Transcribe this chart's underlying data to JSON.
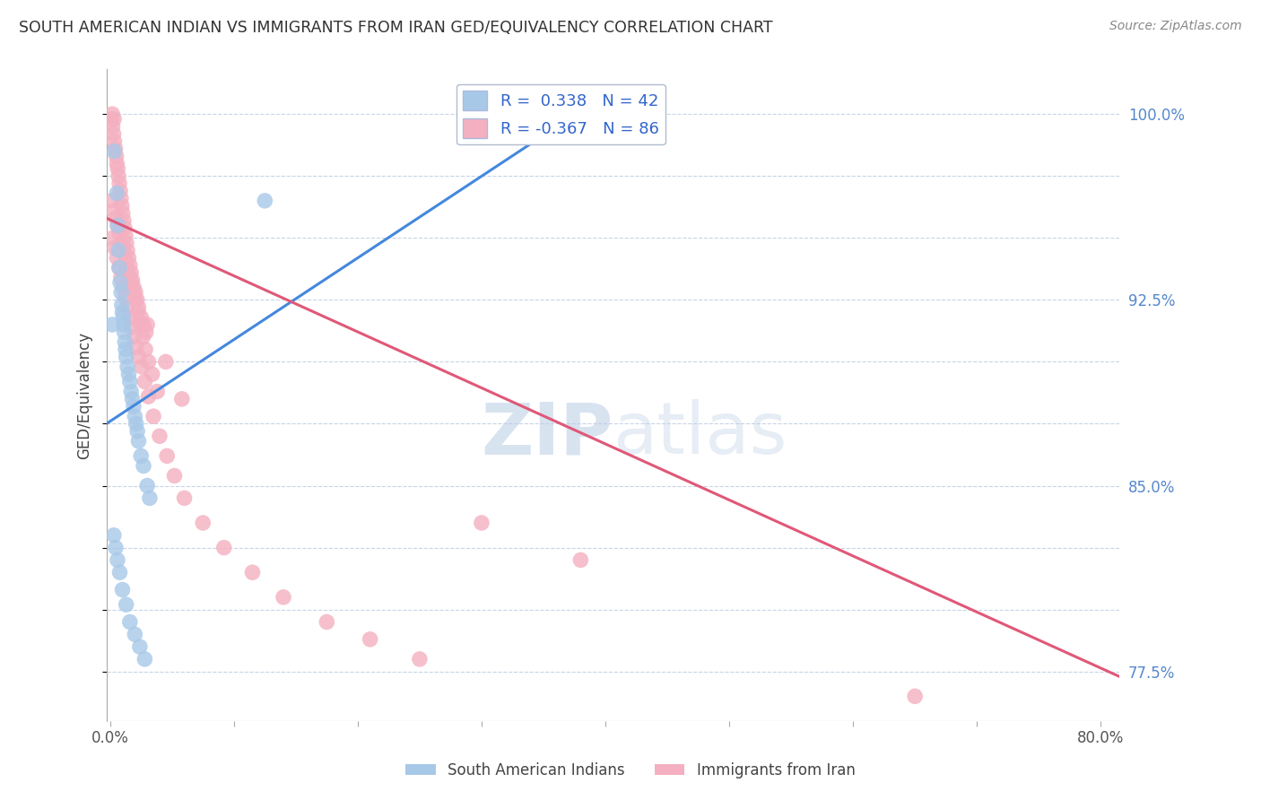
{
  "title": "SOUTH AMERICAN INDIAN VS IMMIGRANTS FROM IRAN GED/EQUIVALENCY CORRELATION CHART",
  "source": "Source: ZipAtlas.com",
  "ylabel": "GED/Equivalency",
  "blue_R": 0.338,
  "blue_N": 42,
  "pink_R": -0.367,
  "pink_N": 86,
  "blue_color": "#a8c8e8",
  "pink_color": "#f4b0c0",
  "blue_line_color": "#4488dd",
  "pink_line_color": "#e05878",
  "legend_text_color": "#3366cc",
  "title_color": "#333333",
  "source_color": "#888888",
  "ylabel_color": "#444444",
  "watermark_color": "#ccddf0",
  "ymin": 75.5,
  "ymax": 101.8,
  "xmin": -0.3,
  "xmax": 81.5,
  "ytick_positions": [
    77.5,
    80.0,
    82.5,
    85.0,
    87.5,
    90.0,
    92.5,
    95.0,
    97.5,
    100.0
  ],
  "ytick_labels": [
    "77.5%",
    "",
    "",
    "85.0%",
    "",
    "",
    "92.5%",
    "",
    "",
    "100.0%"
  ],
  "blue_line_x0": -0.3,
  "blue_line_y0": 87.5,
  "blue_line_x1": 37.0,
  "blue_line_y1": 99.8,
  "pink_line_x0": -0.3,
  "pink_line_y0": 95.8,
  "pink_line_x1": 81.5,
  "pink_line_y1": 77.3,
  "blue_scatter_x": [
    0.18,
    0.35,
    0.55,
    0.62,
    0.68,
    0.75,
    0.82,
    0.9,
    0.95,
    1.0,
    1.05,
    1.1,
    1.15,
    1.2,
    1.25,
    1.3,
    1.4,
    1.5,
    1.6,
    1.7,
    1.8,
    1.9,
    2.0,
    2.1,
    2.2,
    2.3,
    2.5,
    2.7,
    3.0,
    3.2,
    0.3,
    0.45,
    0.6,
    0.78,
    1.0,
    1.3,
    1.6,
    2.0,
    2.4,
    2.8,
    12.5,
    35.5
  ],
  "blue_scatter_y": [
    91.5,
    98.5,
    96.8,
    95.5,
    94.5,
    93.8,
    93.2,
    92.8,
    92.3,
    92.0,
    91.8,
    91.5,
    91.2,
    90.8,
    90.5,
    90.2,
    89.8,
    89.5,
    89.2,
    88.8,
    88.5,
    88.2,
    87.8,
    87.5,
    87.2,
    86.8,
    86.2,
    85.8,
    85.0,
    84.5,
    83.0,
    82.5,
    82.0,
    81.5,
    80.8,
    80.2,
    79.5,
    79.0,
    78.5,
    78.0,
    96.5,
    99.5
  ],
  "pink_scatter_x": [
    0.12,
    0.2,
    0.28,
    0.35,
    0.42,
    0.5,
    0.55,
    0.62,
    0.68,
    0.75,
    0.82,
    0.88,
    0.95,
    1.02,
    1.1,
    1.18,
    1.25,
    1.32,
    1.4,
    1.5,
    1.6,
    1.7,
    1.8,
    1.92,
    2.05,
    2.18,
    2.3,
    2.5,
    2.7,
    2.9,
    0.15,
    0.3,
    0.45,
    0.6,
    0.75,
    0.92,
    1.08,
    1.22,
    1.38,
    1.55,
    1.72,
    1.88,
    2.05,
    2.25,
    2.45,
    2.65,
    2.85,
    3.1,
    3.4,
    3.8,
    0.22,
    0.38,
    0.55,
    0.72,
    0.88,
    1.05,
    1.22,
    1.4,
    1.58,
    1.75,
    1.92,
    2.1,
    2.3,
    2.55,
    2.8,
    3.1,
    3.5,
    4.0,
    4.6,
    5.2,
    6.0,
    7.5,
    9.2,
    11.5,
    14.0,
    17.5,
    21.0,
    25.0,
    30.0,
    38.0,
    3.0,
    4.5,
    5.8,
    65.0,
    0.18,
    0.32
  ],
  "pink_scatter_y": [
    99.8,
    99.5,
    99.2,
    98.9,
    98.6,
    98.3,
    98.0,
    97.8,
    97.5,
    97.2,
    96.9,
    96.6,
    96.3,
    96.0,
    95.7,
    95.4,
    95.1,
    94.8,
    94.5,
    94.2,
    93.9,
    93.6,
    93.3,
    93.0,
    92.8,
    92.5,
    92.2,
    91.8,
    91.5,
    91.2,
    96.5,
    96.1,
    95.8,
    95.5,
    95.2,
    94.8,
    94.5,
    94.2,
    93.8,
    93.5,
    93.2,
    92.8,
    92.5,
    92.0,
    91.5,
    91.0,
    90.5,
    90.0,
    89.5,
    88.8,
    95.0,
    94.6,
    94.2,
    93.8,
    93.4,
    93.0,
    92.6,
    92.2,
    91.8,
    91.4,
    91.0,
    90.6,
    90.2,
    89.8,
    89.2,
    88.6,
    87.8,
    87.0,
    86.2,
    85.4,
    84.5,
    83.5,
    82.5,
    81.5,
    80.5,
    79.5,
    78.8,
    78.0,
    83.5,
    82.0,
    91.5,
    90.0,
    88.5,
    76.5,
    100.0,
    99.8
  ]
}
